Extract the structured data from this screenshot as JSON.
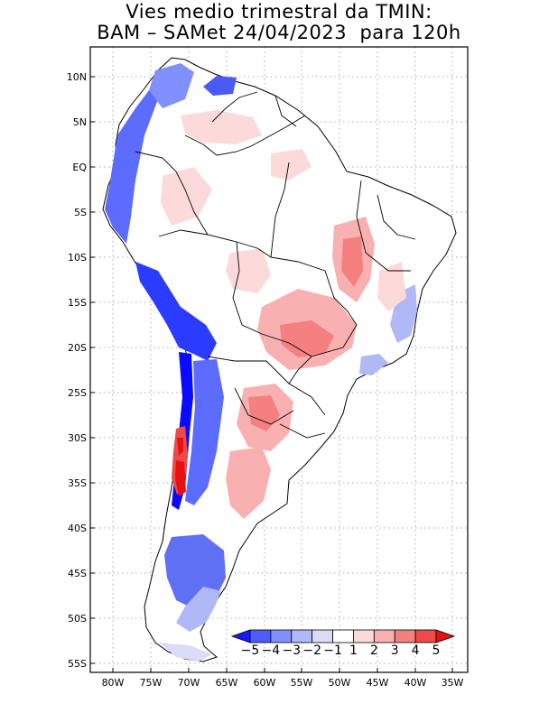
{
  "title": {
    "line1": "Vies medio trimestral da TMIN:",
    "line2": "BAM – SAMet 24/04/2023  para 120h"
  },
  "map": {
    "lon_range": [
      -83,
      -34
    ],
    "lat_range": [
      -56,
      13
    ],
    "gridlines": "dotted",
    "lon_ticks": [
      "80W",
      "75W",
      "70W",
      "65W",
      "60W",
      "55W",
      "50W",
      "45W",
      "40W",
      "35W"
    ],
    "lat_ticks": [
      "10N",
      "5N",
      "EQ",
      "5S",
      "10S",
      "15S",
      "20S",
      "25S",
      "30S",
      "35S",
      "40S",
      "45S",
      "50S",
      "55S"
    ]
  },
  "colorbar": {
    "labels": [
      "−5",
      "−4",
      "−3",
      "−2",
      "−1",
      "1",
      "2",
      "3",
      "4",
      "5"
    ],
    "colors": [
      "#1a1aff",
      "#4d5cff",
      "#8090ff",
      "#b0b8f5",
      "#dcdcfa",
      "#ffffff",
      "#fcdada",
      "#f8b0b0",
      "#f48080",
      "#ee4a4a",
      "#e81010"
    ]
  }
}
